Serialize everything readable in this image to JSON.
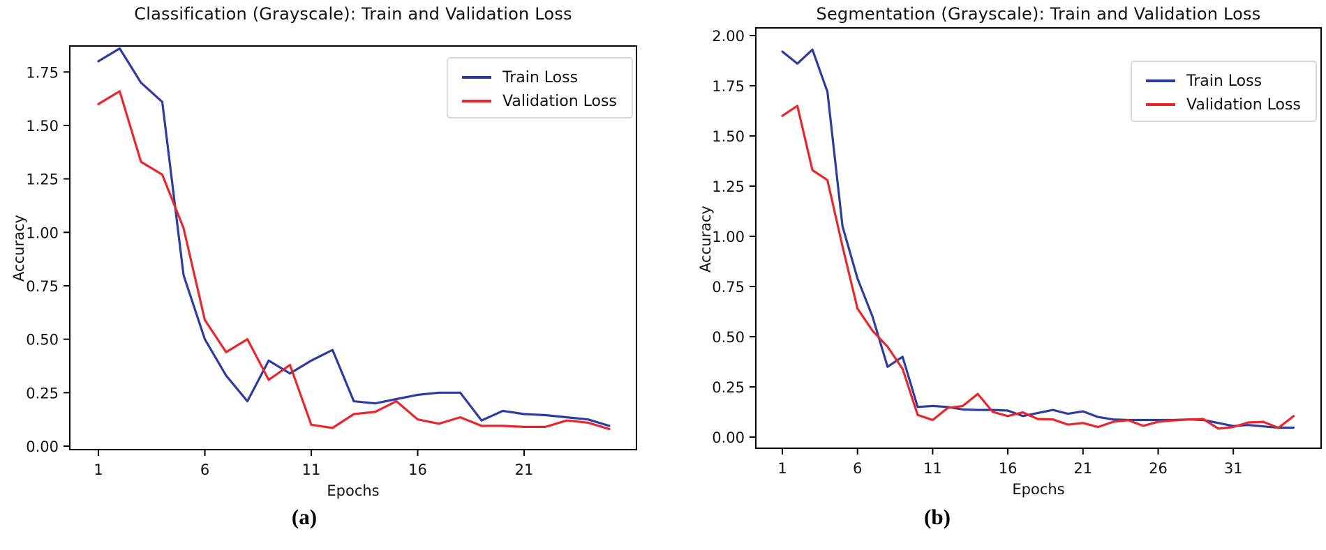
{
  "figure": {
    "background": "#ffffff"
  },
  "captions": [
    "(a)",
    "(b)"
  ],
  "colors": {
    "train": "#2d3ca0",
    "validation": "#e8262b",
    "axis": "#000000",
    "legend_border": "#d9d9d9"
  },
  "chart_data": [
    {
      "type": "line",
      "title": "Classification (Grayscale): Train and Validation Loss",
      "xlabel": "Epochs",
      "ylabel": "Accuracy",
      "legend_position": "upper right",
      "grid": false,
      "xlim": [
        -0.35,
        26.3
      ],
      "ylim": [
        -0.02,
        1.93
      ],
      "xticks": [
        1,
        6,
        11,
        16,
        21
      ],
      "yticks": [
        0.0,
        0.25,
        0.5,
        0.75,
        1.0,
        1.25,
        1.5,
        1.75
      ],
      "x": [
        1,
        2,
        3,
        4,
        5,
        6,
        7,
        8,
        9,
        10,
        11,
        12,
        13,
        14,
        15,
        16,
        17,
        18,
        19,
        20,
        21,
        22,
        23,
        24,
        25
      ],
      "series": [
        {
          "name": "Train Loss",
          "color": "#2d3ca0",
          "values": [
            1.8,
            1.86,
            1.7,
            1.61,
            0.8,
            0.5,
            0.33,
            0.21,
            0.4,
            0.34,
            0.4,
            0.45,
            0.21,
            0.2,
            0.22,
            0.24,
            0.25,
            0.25,
            0.12,
            0.165,
            0.15,
            0.145,
            0.135,
            0.125,
            0.095
          ]
        },
        {
          "name": "Validation Loss",
          "color": "#e8262b",
          "values": [
            1.6,
            1.66,
            1.33,
            1.27,
            1.02,
            0.59,
            0.44,
            0.5,
            0.31,
            0.38,
            0.1,
            0.085,
            0.15,
            0.16,
            0.21,
            0.125,
            0.105,
            0.135,
            0.095,
            0.095,
            0.09,
            0.09,
            0.12,
            0.11,
            0.08
          ]
        }
      ]
    },
    {
      "type": "line",
      "title": "Segmentation (Grayscale): Train and Validation Loss",
      "xlabel": "Epochs",
      "ylabel": "Accuracy",
      "legend_position": "upper right",
      "grid": false,
      "xlim": [
        -0.8,
        36.8
      ],
      "ylim": [
        -0.06,
        2.04
      ],
      "xticks": [
        1,
        6,
        11,
        16,
        21,
        26,
        31
      ],
      "yticks": [
        0.0,
        0.25,
        0.5,
        0.75,
        1.0,
        1.25,
        1.5,
        1.75,
        2.0
      ],
      "x": [
        1,
        2,
        3,
        4,
        5,
        6,
        7,
        8,
        9,
        10,
        11,
        12,
        13,
        14,
        15,
        16,
        17,
        18,
        19,
        20,
        21,
        22,
        23,
        24,
        25,
        26,
        27,
        28,
        29,
        30,
        31,
        32,
        33,
        34,
        35
      ],
      "series": [
        {
          "name": "Train Loss",
          "color": "#2d3ca0",
          "values": [
            1.92,
            1.86,
            1.93,
            1.72,
            1.05,
            0.79,
            0.6,
            0.35,
            0.4,
            0.15,
            0.155,
            0.15,
            0.138,
            0.135,
            0.135,
            0.132,
            0.105,
            0.12,
            0.135,
            0.116,
            0.128,
            0.1,
            0.088,
            0.085,
            0.085,
            0.085,
            0.085,
            0.088,
            0.085,
            0.07,
            0.055,
            0.06,
            0.053,
            0.047,
            0.047
          ]
        },
        {
          "name": "Validation Loss",
          "color": "#e8262b",
          "values": [
            1.6,
            1.65,
            1.33,
            1.28,
            0.95,
            0.64,
            0.53,
            0.45,
            0.34,
            0.11,
            0.085,
            0.145,
            0.155,
            0.215,
            0.125,
            0.105,
            0.123,
            0.09,
            0.088,
            0.062,
            0.07,
            0.05,
            0.076,
            0.084,
            0.056,
            0.076,
            0.083,
            0.087,
            0.09,
            0.042,
            0.05,
            0.073,
            0.076,
            0.046,
            0.104
          ]
        }
      ]
    }
  ]
}
